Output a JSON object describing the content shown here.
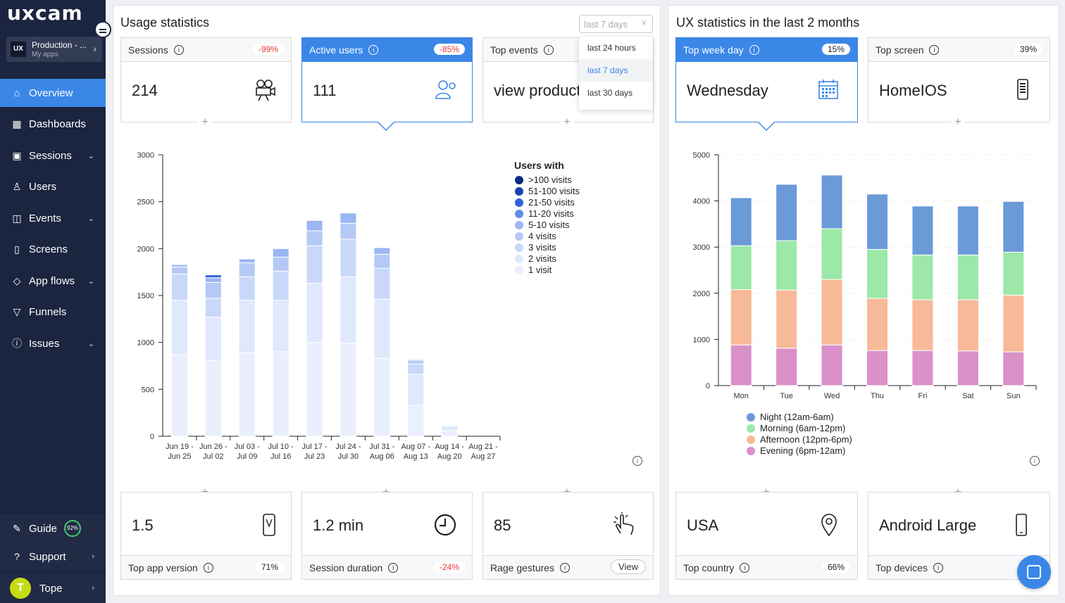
{
  "brand": {
    "logo": "uxcam"
  },
  "app": {
    "logo_text": "UX",
    "name": "Production - ...",
    "sub": "My apps"
  },
  "nav": [
    {
      "label": "Overview",
      "icon": "home-icon",
      "glyph": "⌂",
      "chev": false
    },
    {
      "label": "Dashboards",
      "icon": "dashboard-icon",
      "glyph": "▦",
      "chev": false
    },
    {
      "label": "Sessions",
      "icon": "sessions-icon",
      "glyph": "▣",
      "chev": true
    },
    {
      "label": "Users",
      "icon": "users-icon",
      "glyph": "♙",
      "chev": false
    },
    {
      "label": "Events",
      "icon": "events-icon",
      "glyph": "◫",
      "chev": true
    },
    {
      "label": "Screens",
      "icon": "screens-icon",
      "glyph": "▯",
      "chev": false
    },
    {
      "label": "App flows",
      "icon": "flows-icon",
      "glyph": "◇",
      "chev": true
    },
    {
      "label": "Funnels",
      "icon": "funnel-icon",
      "glyph": "▽",
      "chev": false
    },
    {
      "label": "Issues",
      "icon": "issues-icon",
      "glyph": "ⓘ",
      "chev": true
    }
  ],
  "bottom": {
    "guide": "Guide",
    "guide_pct": "92%",
    "support": "Support",
    "user_initial": "T",
    "user": "Tope"
  },
  "usage": {
    "title": "Usage statistics",
    "range": "last 7 days",
    "range_options": [
      "last 24 hours",
      "last 7 days",
      "last 30 days"
    ],
    "sessions": {
      "label": "Sessions",
      "pct": "-99%",
      "value": "214"
    },
    "active_users": {
      "label": "Active users",
      "pct": "-85%",
      "value": "111"
    },
    "top_events": {
      "label": "Top events",
      "value": "view product"
    },
    "app_version": {
      "value": "1.5",
      "label": "Top app version",
      "pct": "71%"
    },
    "session_duration": {
      "value": "1.2 min",
      "label": "Session duration",
      "pct": "-24%"
    },
    "rage": {
      "value": "85",
      "label": "Rage gestures",
      "button": "View"
    }
  },
  "ux": {
    "title": "UX statistics in the last 2 months",
    "top_week_day": {
      "label": "Top week day",
      "pct": "15%",
      "value": "Wednesday"
    },
    "top_screen": {
      "label": "Top screen",
      "pct": "39%",
      "value": "HomeIOS"
    },
    "top_country": {
      "value": "USA",
      "label": "Top country",
      "pct": "66%"
    },
    "top_devices": {
      "value": "Android Large",
      "label": "Top devices"
    }
  },
  "chart_data": [
    {
      "type": "bar",
      "stacked": true,
      "legend_title": "Users with",
      "categories": [
        "Jun 19 -\nJun 25",
        "Jun 26 -\nJul 02",
        "Jul 03 -\nJul 09",
        "Jul 10 -\nJul 16",
        "Jul 17 -\nJul 23",
        "Jul 24 -\nJul 30",
        "Jul 31 -\nAug 06",
        "Aug 07 -\nAug 13",
        "Aug 14 -\nAug 20",
        "Aug 21 -\nAug 27"
      ],
      "ylim": [
        0,
        3000
      ],
      "yticks": [
        0,
        500,
        1000,
        1500,
        2000,
        2500,
        3000
      ],
      "series": [
        {
          "name": "1 visit",
          "color": "#e9effd",
          "values": [
            870,
            810,
            890,
            900,
            1000,
            990,
            830,
            330,
            60,
            0
          ]
        },
        {
          "name": "2 visits",
          "color": "#dfe8fc",
          "values": [
            580,
            460,
            560,
            550,
            630,
            710,
            630,
            330,
            50,
            0
          ]
        },
        {
          "name": "3 visits",
          "color": "#c9d8f9",
          "values": [
            280,
            200,
            250,
            310,
            400,
            400,
            330,
            110,
            0,
            0
          ]
        },
        {
          "name": "4 visits",
          "color": "#b5c9f6",
          "values": [
            75,
            170,
            150,
            150,
            160,
            170,
            150,
            40,
            0,
            0
          ]
        },
        {
          "name": "5-10 visits",
          "color": "#9ab6f3",
          "values": [
            25,
            50,
            40,
            90,
            110,
            110,
            70,
            10,
            0,
            0
          ]
        },
        {
          "name": "11-20 visits",
          "color": "#5f8fea",
          "values": [
            0,
            0,
            0,
            0,
            0,
            0,
            0,
            0,
            0,
            0
          ]
        },
        {
          "name": "21-50 visits",
          "color": "#2f63d8",
          "values": [
            0,
            30,
            0,
            0,
            0,
            0,
            0,
            0,
            0,
            0
          ]
        },
        {
          "name": "51-100 visits",
          "color": "#1b44b3",
          "values": [
            0,
            0,
            0,
            0,
            0,
            0,
            0,
            0,
            0,
            0
          ]
        },
        {
          "name": ">100 visits",
          "color": "#0d2c7e",
          "values": [
            0,
            0,
            0,
            0,
            0,
            0,
            0,
            0,
            0,
            0
          ]
        }
      ]
    },
    {
      "type": "bar",
      "stacked": true,
      "categories": [
        "Mon",
        "Tue",
        "Wed",
        "Thu",
        "Fri",
        "Sat",
        "Sun"
      ],
      "ylim": [
        0,
        5000
      ],
      "yticks": [
        0,
        1000,
        2000,
        3000,
        4000,
        5000
      ],
      "series": [
        {
          "name": "Evening (6pm-12am)",
          "color": "#d991c8",
          "values": [
            880,
            810,
            880,
            760,
            760,
            750,
            730
          ]
        },
        {
          "name": "Afternoon (12pm-6pm)",
          "color": "#f8b998",
          "values": [
            1200,
            1260,
            1420,
            1130,
            1100,
            1110,
            1230
          ]
        },
        {
          "name": "Morning (6am-12pm)",
          "color": "#9ce8a8",
          "values": [
            950,
            1070,
            1100,
            1060,
            970,
            970,
            930
          ]
        },
        {
          "name": "Night (12am-6am)",
          "color": "#6b9ad8",
          "values": [
            1040,
            1220,
            1160,
            1200,
            1060,
            1060,
            1100
          ]
        }
      ]
    }
  ]
}
